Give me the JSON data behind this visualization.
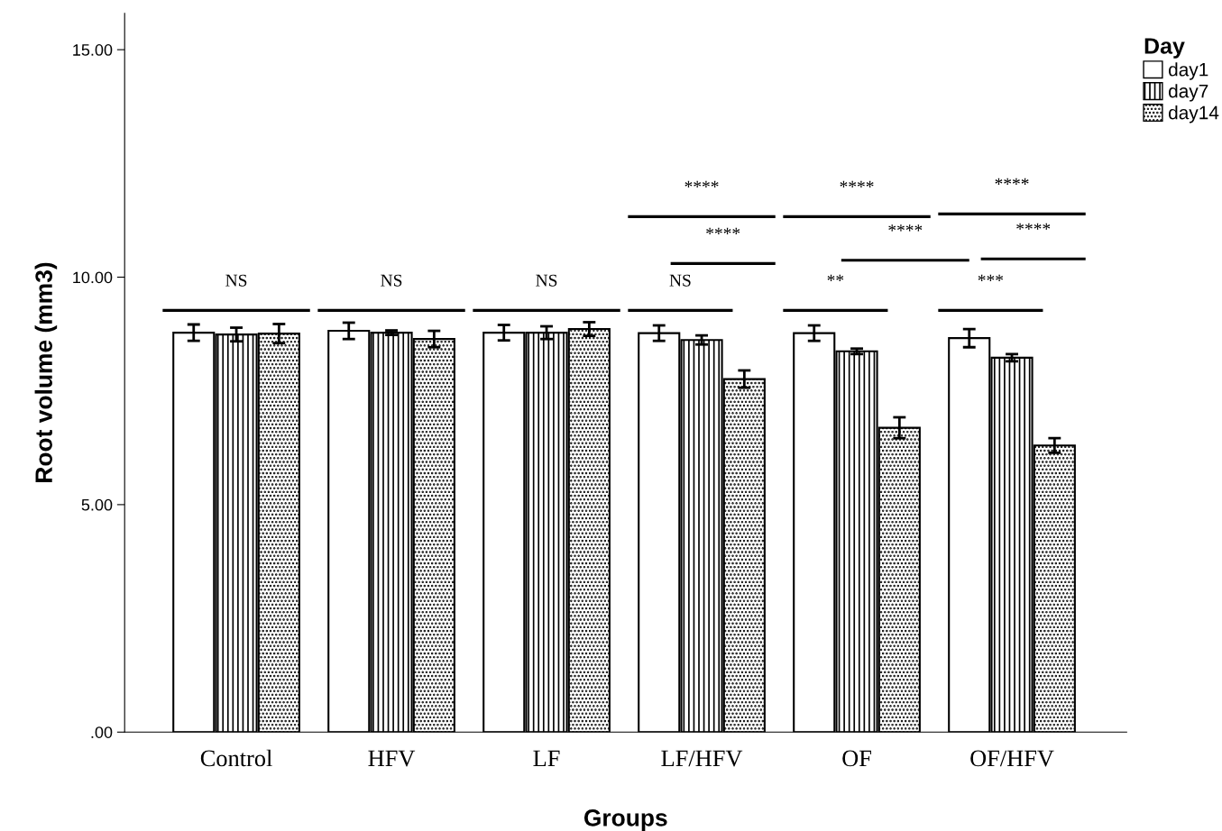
{
  "chart_data": {
    "type": "bar",
    "xlabel": "Groups",
    "ylabel": "Root volume (mm3)",
    "legend_title": "Day",
    "legend": "top right",
    "grid": false,
    "categories": [
      "Control",
      "HFV",
      "LF",
      "LF/HFV",
      "OF",
      "OF/HFV"
    ],
    "series": [
      {
        "name": "day1",
        "color": "#000000",
        "values": [
          8.78,
          8.82,
          8.78,
          8.77,
          8.77,
          8.66
        ],
        "errors": [
          0.18,
          0.18,
          0.17,
          0.17,
          0.17,
          0.2
        ]
      },
      {
        "name": "day7",
        "color": "#000000",
        "values": [
          8.74,
          8.78,
          8.78,
          8.62,
          8.37,
          8.23
        ],
        "errors": [
          0.15,
          0.05,
          0.14,
          0.1,
          0.06,
          0.08
        ]
      },
      {
        "name": "day14",
        "color": "#000000",
        "values": [
          8.76,
          8.64,
          8.86,
          7.76,
          6.69,
          6.3
        ],
        "errors": [
          0.21,
          0.18,
          0.15,
          0.19,
          0.23,
          0.16
        ]
      }
    ],
    "ylim": [
      0,
      15.8
    ],
    "yticks": [
      {
        "value": 0,
        "label": ".00"
      },
      {
        "value": 5,
        "label": "5.00"
      },
      {
        "value": 10,
        "label": "10.00"
      },
      {
        "value": 15,
        "label": "15.00"
      }
    ],
    "annotations": [
      "NS",
      "NS",
      "NS",
      "NS",
      "****",
      "****",
      "**",
      "****",
      "****",
      "***",
      "****",
      "****"
    ]
  }
}
